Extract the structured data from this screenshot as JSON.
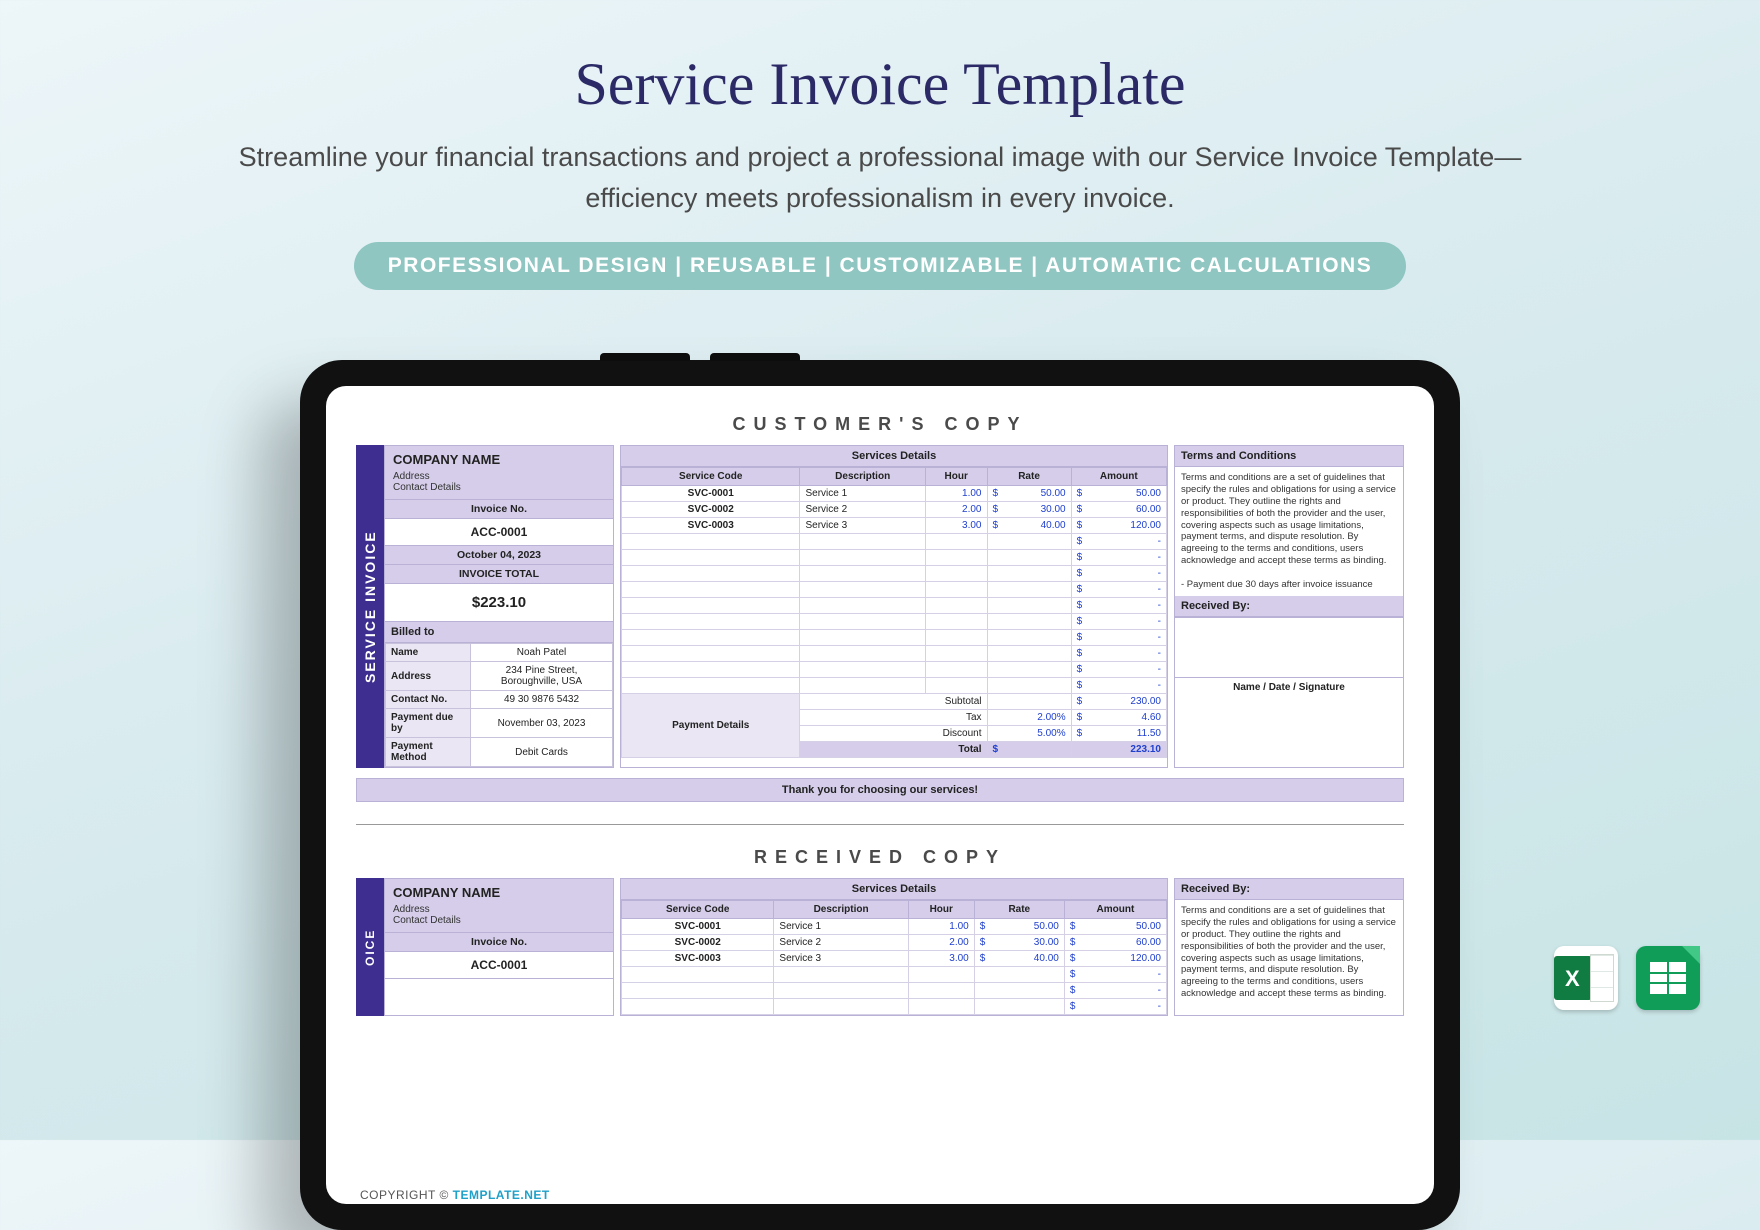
{
  "hero": {
    "title": "Service Invoice Template",
    "subtitle": "Streamline your financial transactions and project a professional image with our Service Invoice Template—efficiency meets professionalism in every invoice.",
    "features": "PROFESSIONAL DESIGN   |   REUSABLE   |   CUSTOMIZABLE   |   AUTOMATIC CALCULATIONS"
  },
  "colors": {
    "title": "#2b2a67",
    "pill_bg": "#8fc6c1",
    "sidebar": "#3d2e8f",
    "header_bg": "#d5cde9",
    "border": "#b9b1d6",
    "value_blue": "#2040d0"
  },
  "copy1": {
    "heading": "CUSTOMER'S COPY",
    "sidebar": "SERVICE INVOICE",
    "company": {
      "name": "COMPANY NAME",
      "line1": "Address",
      "line2": "Contact Details"
    },
    "invoice_no_label": "Invoice No.",
    "invoice_no": "ACC-0001",
    "date": "October 04, 2023",
    "total_label": "INVOICE TOTAL",
    "total": "$223.10",
    "billed_header": "Billed to",
    "billed": {
      "Name": "Noah Patel",
      "Address": "234 Pine Street, Boroughville, USA",
      "Contact No.": "49 30 9876 5432",
      "Payment due by": "November 03, 2023",
      "Payment Method": "Debit Cards"
    },
    "services_header": "Services Details",
    "svc_cols": [
      "Service Code",
      "Description",
      "Hour",
      "Rate",
      "Amount"
    ],
    "svc_rows": [
      {
        "code": "SVC-0001",
        "desc": "Service 1",
        "hour": "1.00",
        "rate": "50.00",
        "amount": "50.00"
      },
      {
        "code": "SVC-0002",
        "desc": "Service 2",
        "hour": "2.00",
        "rate": "30.00",
        "amount": "60.00"
      },
      {
        "code": "SVC-0003",
        "desc": "Service 3",
        "hour": "3.00",
        "rate": "40.00",
        "amount": "120.00"
      }
    ],
    "empty_rows": 10,
    "payment_label": "Payment Details",
    "summary": {
      "Subtotal": "230.00",
      "Tax": {
        "pct": "2.00%",
        "val": "4.60"
      },
      "Discount": {
        "pct": "5.00%",
        "val": "11.50"
      },
      "Total": "223.10"
    },
    "terms_header": "Terms and Conditions",
    "terms_body": "Terms and conditions are a set of guidelines that specify the rules and obligations for using a service or product. They outline the rights and responsibilities of both the provider and the user, covering aspects such as usage limitations, payment terms, and dispute resolution. By agreeing to the terms and conditions, users acknowledge and accept these terms as binding.",
    "terms_extra": "- Payment due 30 days after invoice issuance",
    "received_header": "Received By:",
    "signature": "Name / Date / Signature",
    "thanks": "Thank you for choosing our services!"
  },
  "copy2": {
    "heading": "RECEIVED COPY",
    "received_header": "Received By:"
  },
  "footer": {
    "copyright": "COPYRIGHT  ©  ",
    "brand": "TEMPLATE.NET"
  }
}
